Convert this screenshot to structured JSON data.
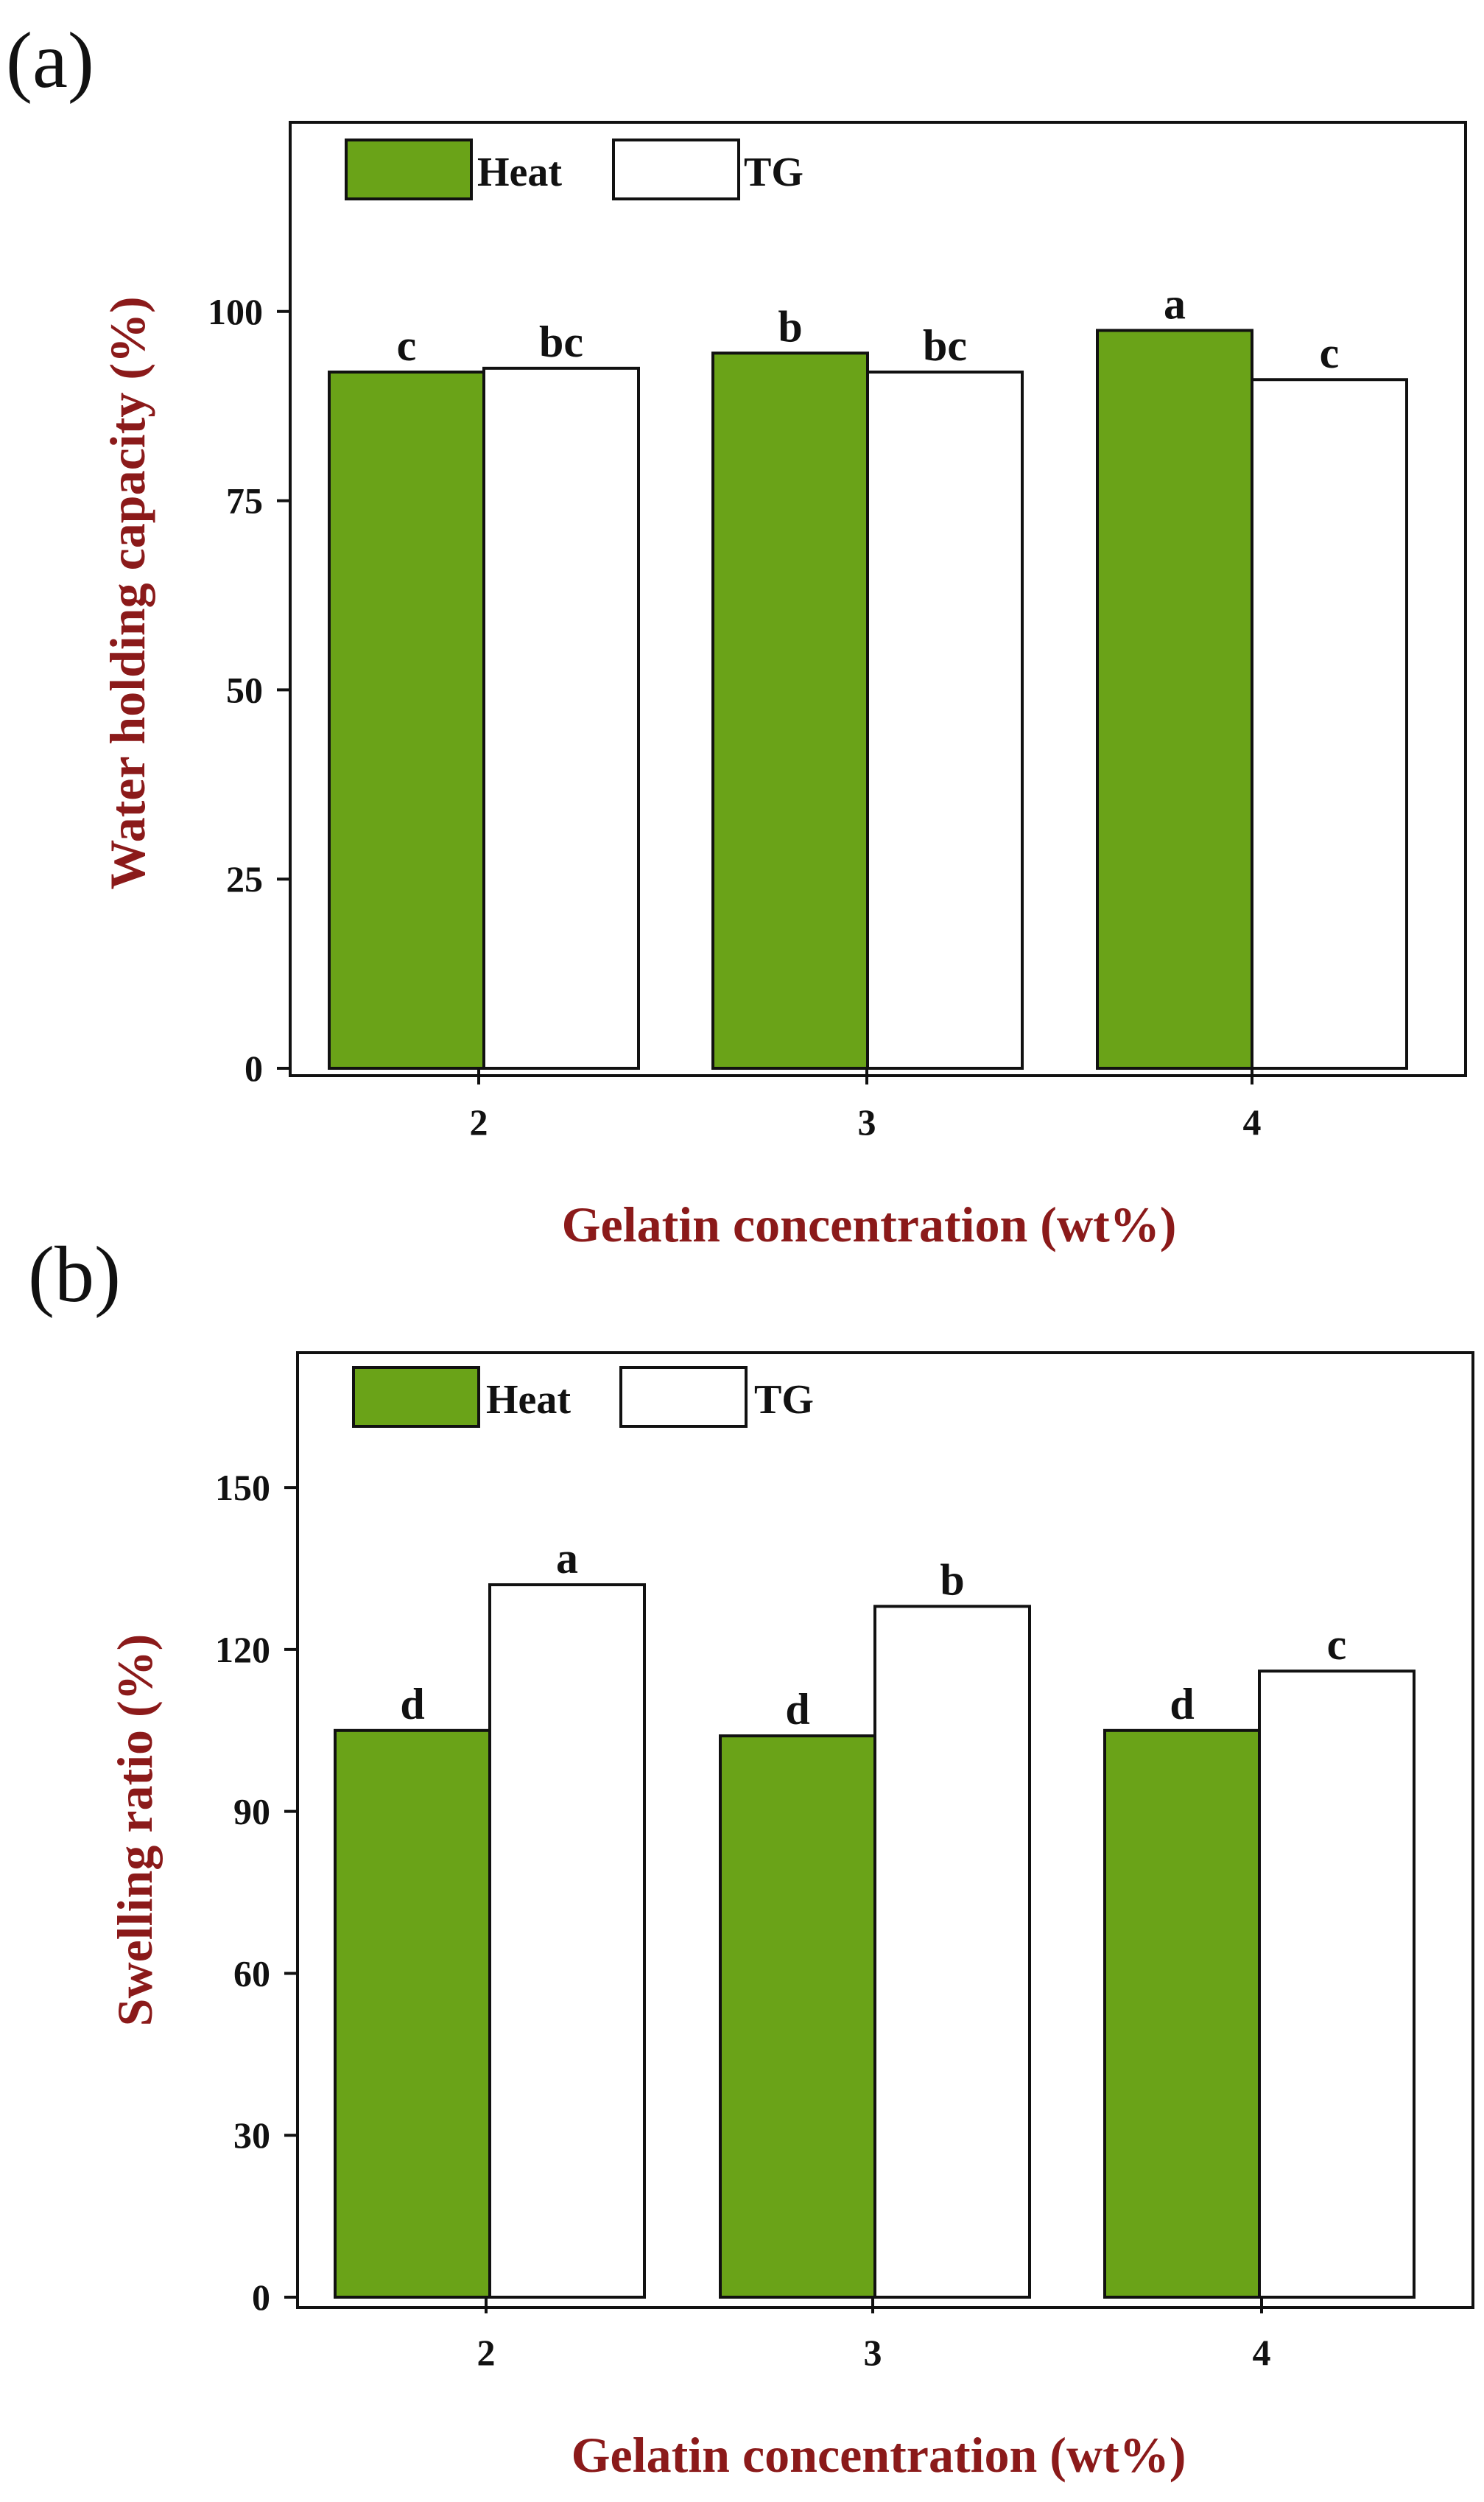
{
  "figure": {
    "colors": {
      "heat": "#6aa318",
      "tg": "#ffffff",
      "axis_title": "#8b1a1a",
      "stroke": "#111111"
    }
  },
  "chart_data": [
    {
      "panel_label": "(a)",
      "type": "bar",
      "categories": [
        "2",
        "3",
        "4"
      ],
      "series": [
        {
          "name": "Heat",
          "values": [
            92,
            94.5,
            97.5
          ],
          "labels": [
            "c",
            "b",
            "a"
          ]
        },
        {
          "name": "TG",
          "values": [
            92.5,
            92,
            91
          ],
          "labels": [
            "bc",
            "bc",
            "c"
          ]
        }
      ],
      "xlabel": "Gelatin concentration (wt%)",
      "ylabel": "Water holding capacity (%)",
      "ylim": [
        0,
        125
      ],
      "yticks": [
        0,
        25,
        50,
        75,
        100
      ],
      "legend": {
        "position": "top-left"
      }
    },
    {
      "panel_label": "(b)",
      "type": "bar",
      "categories": [
        "2",
        "3",
        "4"
      ],
      "series": [
        {
          "name": "Heat",
          "values": [
            105,
            104,
            105
          ],
          "labels": [
            "d",
            "d",
            "d"
          ]
        },
        {
          "name": "TG",
          "values": [
            132,
            128,
            116
          ],
          "labels": [
            "a",
            "b",
            "c"
          ]
        }
      ],
      "xlabel": "Gelatin concentration (wt%)",
      "ylabel": "Swelling ratio (%)",
      "ylim": [
        0,
        175
      ],
      "yticks": [
        0,
        30,
        60,
        90,
        120,
        150
      ],
      "legend": {
        "position": "top-left"
      }
    }
  ]
}
